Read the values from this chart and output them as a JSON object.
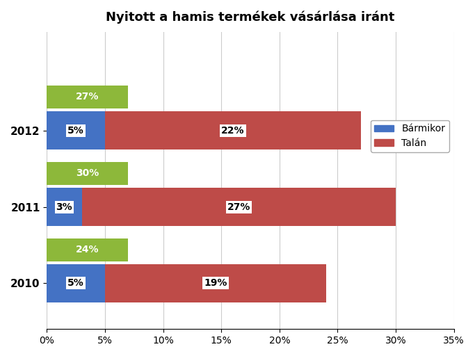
{
  "title": "Nyitott a hamis termékek vásárlása iránt",
  "years": [
    "2010",
    "2011",
    "2012"
  ],
  "blue_values": [
    5,
    3,
    5
  ],
  "red_values": [
    19,
    27,
    22
  ],
  "green_values": [
    7,
    7,
    7
  ],
  "green_labels": [
    24,
    30,
    27
  ],
  "blue_color": "#4472C4",
  "red_color": "#BE4B48",
  "green_color": "#8DB83A",
  "xlim": [
    0,
    35
  ],
  "xticks": [
    0,
    5,
    10,
    15,
    20,
    25,
    30,
    35
  ],
  "xtick_labels": [
    "0%",
    "5%",
    "10%",
    "15%",
    "20%",
    "25%",
    "30%",
    "35%"
  ],
  "legend_labels": [
    "Bármikor",
    "Talán"
  ],
  "title_fontsize": 13,
  "label_fontsize": 10,
  "tick_fontsize": 10
}
